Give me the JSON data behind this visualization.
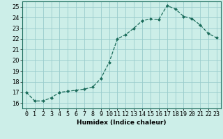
{
  "x": [
    0,
    1,
    2,
    3,
    4,
    5,
    6,
    7,
    8,
    9,
    10,
    11,
    12,
    13,
    14,
    15,
    16,
    17,
    18,
    19,
    20,
    21,
    22,
    23
  ],
  "y": [
    17.0,
    16.2,
    16.2,
    16.5,
    17.0,
    17.1,
    17.2,
    17.3,
    17.5,
    18.3,
    19.8,
    22.0,
    22.4,
    23.0,
    23.7,
    23.85,
    23.8,
    25.1,
    24.8,
    24.1,
    23.9,
    23.3,
    22.5,
    22.1
  ],
  "line_color": "#1a6b5a",
  "marker": "D",
  "marker_size": 2.0,
  "bg_color": "#cceee8",
  "grid_color": "#99cccc",
  "xlabel": "Humidex (Indice chaleur)",
  "xlim": [
    -0.5,
    23.5
  ],
  "ylim": [
    15.5,
    25.5
  ],
  "yticks": [
    16,
    17,
    18,
    19,
    20,
    21,
    22,
    23,
    24,
    25
  ],
  "xtick_labels": [
    "0",
    "1",
    "2",
    "3",
    "4",
    "5",
    "6",
    "7",
    "8",
    "9",
    "10",
    "11",
    "12",
    "13",
    "14",
    "15",
    "16",
    "17",
    "18",
    "19",
    "20",
    "21",
    "22",
    "23"
  ],
  "label_fontsize": 6.5,
  "tick_fontsize": 6.0
}
